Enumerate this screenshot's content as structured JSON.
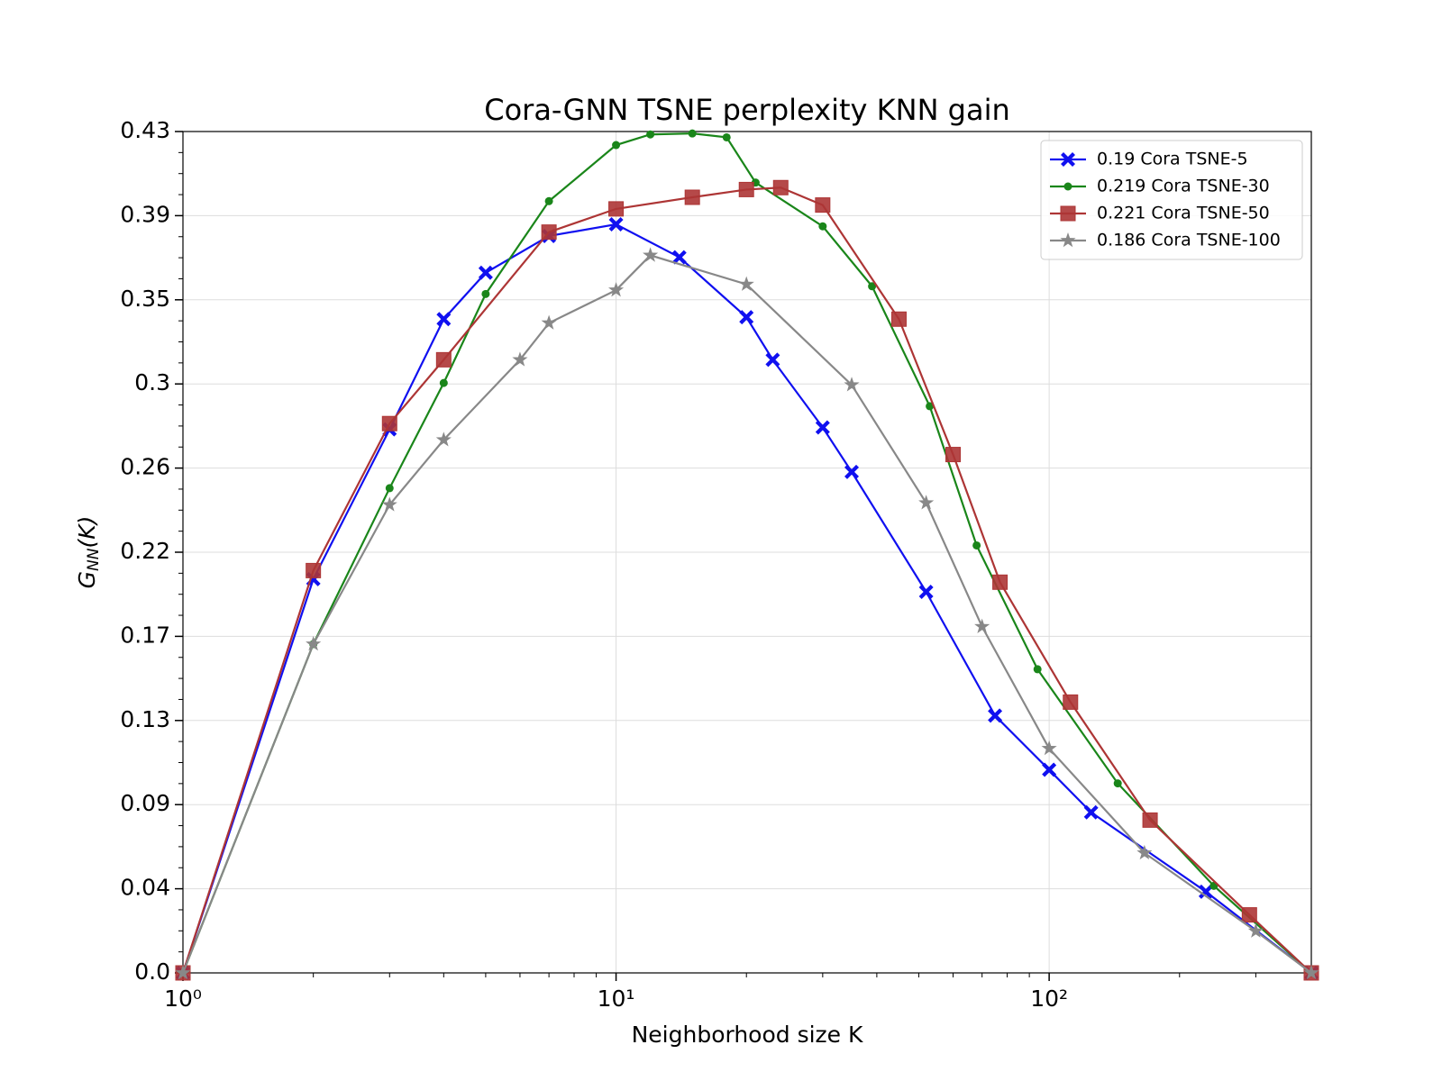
{
  "chart_data": {
    "type": "line",
    "title": "Cora-GNN TSNE perplexity KNN gain",
    "xlabel": "Neighborhood size K",
    "ylabel": {
      "main": "G",
      "sub": "NN",
      "rest": "(K)"
    },
    "xscale": "log",
    "xlim": [
      1,
      403
    ],
    "ylim": [
      0,
      0.435
    ],
    "xticks": [
      {
        "value": 1,
        "label": "10⁰"
      },
      {
        "value": 10,
        "label": "10¹"
      },
      {
        "value": 100,
        "label": "10²"
      }
    ],
    "yticks": [
      {
        "value": 0,
        "label": "0.0"
      },
      {
        "value": 0.0435,
        "label": "0.04"
      },
      {
        "value": 0.087,
        "label": "0.09"
      },
      {
        "value": 0.1305,
        "label": "0.13"
      },
      {
        "value": 0.174,
        "label": "0.17"
      },
      {
        "value": 0.2175,
        "label": "0.22"
      },
      {
        "value": 0.261,
        "label": "0.26"
      },
      {
        "value": 0.3045,
        "label": "0.3"
      },
      {
        "value": 0.348,
        "label": "0.35"
      },
      {
        "value": 0.3915,
        "label": "0.39"
      },
      {
        "value": 0.435,
        "label": "0.43"
      }
    ],
    "grid": true,
    "legend": "upper right",
    "series": [
      {
        "name": "0.19 Cora TSNE-5",
        "color": "#1010f0",
        "marker": "x",
        "x": [
          1,
          2,
          3,
          4,
          5,
          7,
          10,
          14,
          20,
          23,
          30,
          35,
          52,
          75,
          100,
          125,
          230,
          403
        ],
        "values": [
          0,
          0.2036,
          0.281,
          0.338,
          0.362,
          0.381,
          0.387,
          0.37,
          0.339,
          0.317,
          0.282,
          0.259,
          0.197,
          0.133,
          0.105,
          0.083,
          0.042,
          0
        ]
      },
      {
        "name": "0.219 Cora TSNE-30",
        "color": "#1a861a",
        "marker": "o",
        "x": [
          1,
          2,
          3,
          4,
          5,
          7,
          10,
          12,
          15,
          18,
          21,
          30,
          39,
          53,
          68,
          94,
          144,
          240,
          403
        ],
        "values": [
          0,
          0.17,
          0.2506,
          0.305,
          0.351,
          0.399,
          0.428,
          0.4335,
          0.434,
          0.432,
          0.4086,
          0.386,
          0.355,
          0.293,
          0.221,
          0.157,
          0.098,
          0.045,
          0
        ]
      },
      {
        "name": "0.221 Cora TSNE-50",
        "color": "#ad3535",
        "marker": "s",
        "x": [
          1,
          2,
          3,
          4,
          7,
          10,
          15,
          20,
          24,
          30,
          45,
          60,
          77,
          112,
          171,
          290,
          403
        ],
        "values": [
          0,
          0.208,
          0.284,
          0.317,
          0.383,
          0.395,
          0.401,
          0.405,
          0.406,
          0.397,
          0.338,
          0.268,
          0.202,
          0.14,
          0.079,
          0.03,
          0
        ]
      },
      {
        "name": "0.186 Cora TSNE-100",
        "color": "#888888",
        "marker": "*",
        "x": [
          1,
          2,
          3,
          4,
          6,
          7,
          10,
          12,
          20,
          35,
          52,
          70,
          100,
          166,
          300,
          403
        ],
        "values": [
          0,
          0.17,
          0.242,
          0.2756,
          0.317,
          0.336,
          0.353,
          0.371,
          0.356,
          0.304,
          0.243,
          0.179,
          0.116,
          0.062,
          0.0216,
          0
        ]
      }
    ]
  }
}
